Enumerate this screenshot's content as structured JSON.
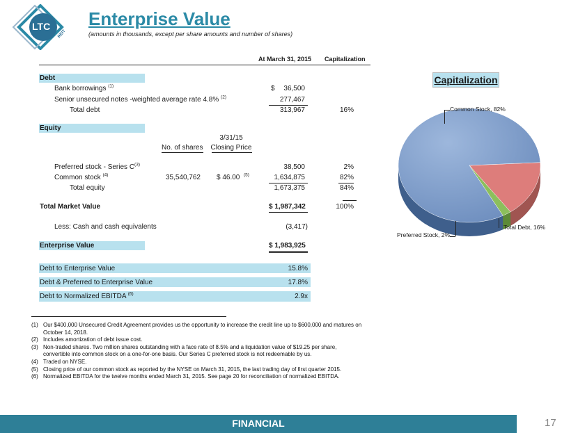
{
  "logo": {
    "text": "LTC",
    "reit": "REIT"
  },
  "header": {
    "title": "Enterprise Value",
    "subtitle": "(amounts in thousands, except per share amounts and number of shares)"
  },
  "table": {
    "col_at": "At March 31, 2015",
    "col_cap": "Capitalization",
    "debt_label": "Debt",
    "bank_label": "Bank borrowings",
    "bank_sup": "(1)",
    "bank_dollar": "$",
    "bank_value": "36,500",
    "notes_label": "Senior unsecured notes -weighted average rate 4.8%",
    "notes_sup": "(2)",
    "notes_value": "277,467",
    "total_debt_label": "Total debt",
    "total_debt_value": "313,967",
    "total_debt_pct": "16%",
    "equity_label": "Equity",
    "col_shares": "No. of shares",
    "col_price_1": "3/31/15",
    "col_price_2": "Closing Price",
    "pref_label": "Preferred stock - Series C",
    "pref_sup": "(3)",
    "pref_value": "38,500",
    "pref_pct": "2%",
    "common_label": "Common stock",
    "common_sup": "(4)",
    "common_shares": "35,540,762",
    "common_price": "$  46.00",
    "common_price_sup": "(5)",
    "common_value": "1,634,875",
    "common_pct": "82%",
    "total_equity_label": "Total equity",
    "total_equity_value": "1,673,375",
    "total_equity_pct": "84%",
    "tmv_label": "Total Market Value",
    "tmv_value": "$ 1,987,342",
    "tmv_pct": "100%",
    "cash_label": "Less:  Cash and cash equivalents",
    "cash_value": "(3,417)",
    "ev_label": "Enterprise Value",
    "ev_value": "$ 1,983,925"
  },
  "ratios": [
    {
      "label": "Debt to Enterprise Value",
      "sup": "",
      "value": "15.8%"
    },
    {
      "label": "Debt & Preferred to Enterprise Value",
      "sup": "",
      "value": "17.8%"
    },
    {
      "label": "Debt to Normalized EBITDA",
      "sup": "(6)",
      "value": "2.9x"
    }
  ],
  "footnotes": [
    {
      "num": "(1)",
      "text": "Our $400,000 Unsecured Credit Agreement provides us the opportunity to increase the credit line up to $600,000 and matures on"
    },
    {
      "num": "",
      "text": "October 14, 2018."
    },
    {
      "num": "(2)",
      "text": "Includes amortization of debt issue cost."
    },
    {
      "num": "(3)",
      "text": "Non-traded shares.  Two million shares outstanding with a face rate of 8.5% and a liquidation value of $19.25 per share,"
    },
    {
      "num": "",
      "text": "convertible into common stock on a one-for-one basis.  Our Series C preferred stock is not redeemable by us."
    },
    {
      "num": "(4)",
      "text": "Traded on NYSE."
    },
    {
      "num": "(5)",
      "text": "Closing price of our common stock as reported by the NYSE on March 31, 2015, the last trading day of first quarter 2015."
    },
    {
      "num": "(6)",
      "text": "Normalized EBITDA for the twelve months ended March 31, 2015.  See page 20 for reconciliation of normalized EBITDA."
    }
  ],
  "chart": {
    "title": "Capitalization",
    "slices": [
      {
        "label": "Common Stock, 82%",
        "value": 82,
        "color": "#7f9fcd"
      },
      {
        "label": "Total Debt, 16%",
        "value": 16,
        "color": "#dd7d7b"
      },
      {
        "label": "Preferred Stock, 2%",
        "value": 2,
        "color": "#8cbf5c"
      }
    ]
  },
  "footer": {
    "label": "FINANCIAL",
    "page": "17"
  }
}
